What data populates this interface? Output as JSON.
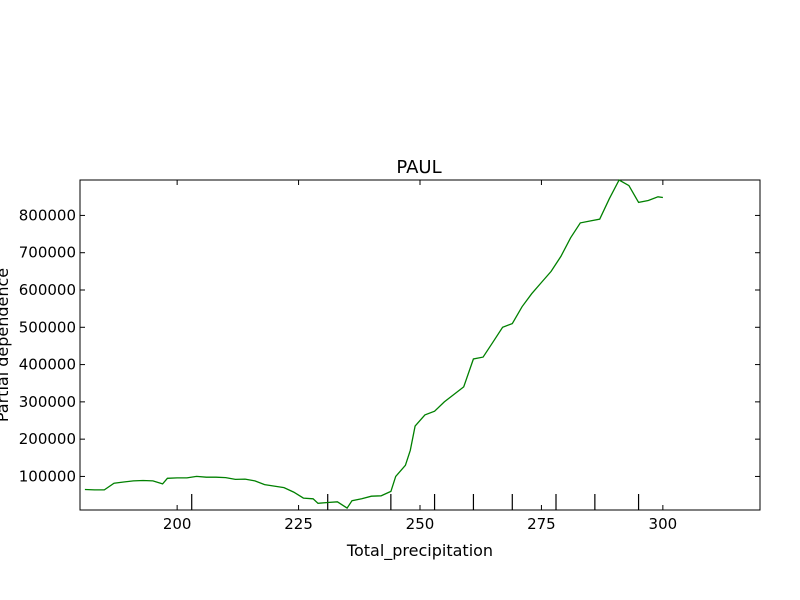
{
  "chart_data": {
    "type": "line",
    "title": "PAUL",
    "xlabel": "Total_precipitation",
    "ylabel": "Partial dependence",
    "xlim": [
      180,
      320
    ],
    "ylim": [
      10000,
      895000
    ],
    "xticks": [
      200,
      225,
      250,
      275,
      300
    ],
    "yticks": [
      100000,
      200000,
      300000,
      400000,
      500000,
      600000,
      700000,
      800000
    ],
    "grid": false,
    "line_color": "#008000",
    "rug": [
      203,
      231,
      244,
      253,
      261,
      269,
      278,
      286,
      295
    ],
    "series": [
      {
        "x": [
          181,
          183,
          185,
          187,
          189,
          191,
          193,
          195,
          197,
          198,
          200,
          202,
          204,
          206,
          208,
          210,
          212,
          214,
          216,
          218,
          220,
          222,
          224,
          226,
          228,
          229,
          231,
          233,
          235,
          236,
          238,
          240,
          242,
          244,
          245,
          247,
          248,
          249,
          251,
          253,
          255,
          257,
          259,
          261,
          263,
          265,
          267,
          269,
          271,
          273,
          275,
          277,
          279,
          281,
          283,
          285,
          287,
          289,
          291,
          293,
          295,
          297,
          299,
          300
        ],
        "y": [
          65000,
          64000,
          64000,
          82000,
          85000,
          88000,
          89000,
          88000,
          80000,
          95000,
          96000,
          96000,
          100000,
          98000,
          98000,
          97000,
          92000,
          93000,
          88000,
          78000,
          74000,
          70000,
          58000,
          42000,
          40000,
          28000,
          30000,
          32000,
          15000,
          35000,
          40000,
          47000,
          48000,
          60000,
          100000,
          130000,
          170000,
          235000,
          265000,
          275000,
          300000,
          320000,
          340000,
          415000,
          420000,
          460000,
          500000,
          510000,
          555000,
          590000,
          620000,
          650000,
          690000,
          740000,
          780000,
          785000,
          790000,
          845000,
          895000,
          880000,
          835000,
          840000,
          850000,
          848000
        ]
      }
    ]
  }
}
